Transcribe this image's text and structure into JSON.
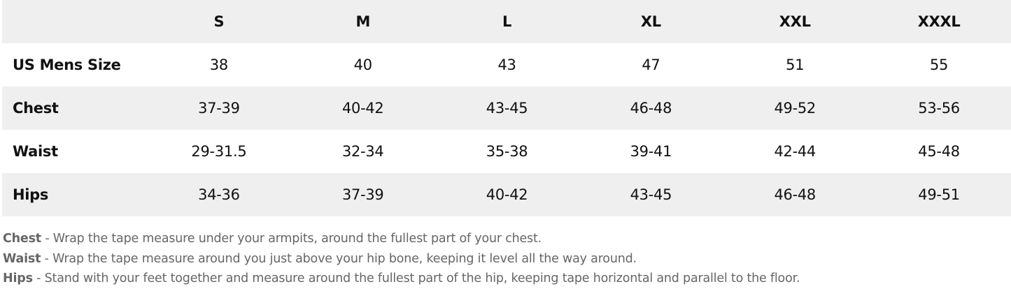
{
  "table": {
    "headers": [
      "",
      "S",
      "M",
      "L",
      "XL",
      "XXL",
      "XXXL"
    ],
    "rows": [
      {
        "label": "US Mens Size",
        "values": [
          "38",
          "40",
          "43",
          "47",
          "51",
          "55"
        ]
      },
      {
        "label": "Chest",
        "values": [
          "37-39",
          "40-42",
          "43-45",
          "46-48",
          "49-52",
          "53-56"
        ]
      },
      {
        "label": "Waist",
        "values": [
          "29-31.5",
          "32-34",
          "35-38",
          "39-41",
          "42-44",
          "45-48"
        ]
      },
      {
        "label": "Hips",
        "values": [
          "34-36",
          "37-39",
          "40-42",
          "43-45",
          "46-48",
          "49-51"
        ]
      }
    ]
  },
  "notes": [
    {
      "term": "Chest",
      "text": " - Wrap the tape measure under your armpits, around the fullest part of your chest."
    },
    {
      "term": "Waist",
      "text": " - Wrap the tape measure around you just above your hip bone, keeping it level all the way around."
    },
    {
      "term": "Hips",
      "text": " - Stand with your feet together and measure around the fullest part of the hip, keeping tape horizontal and parallel to the floor."
    }
  ],
  "colors": {
    "stripe": "#efefef",
    "note_text": "#666666"
  }
}
